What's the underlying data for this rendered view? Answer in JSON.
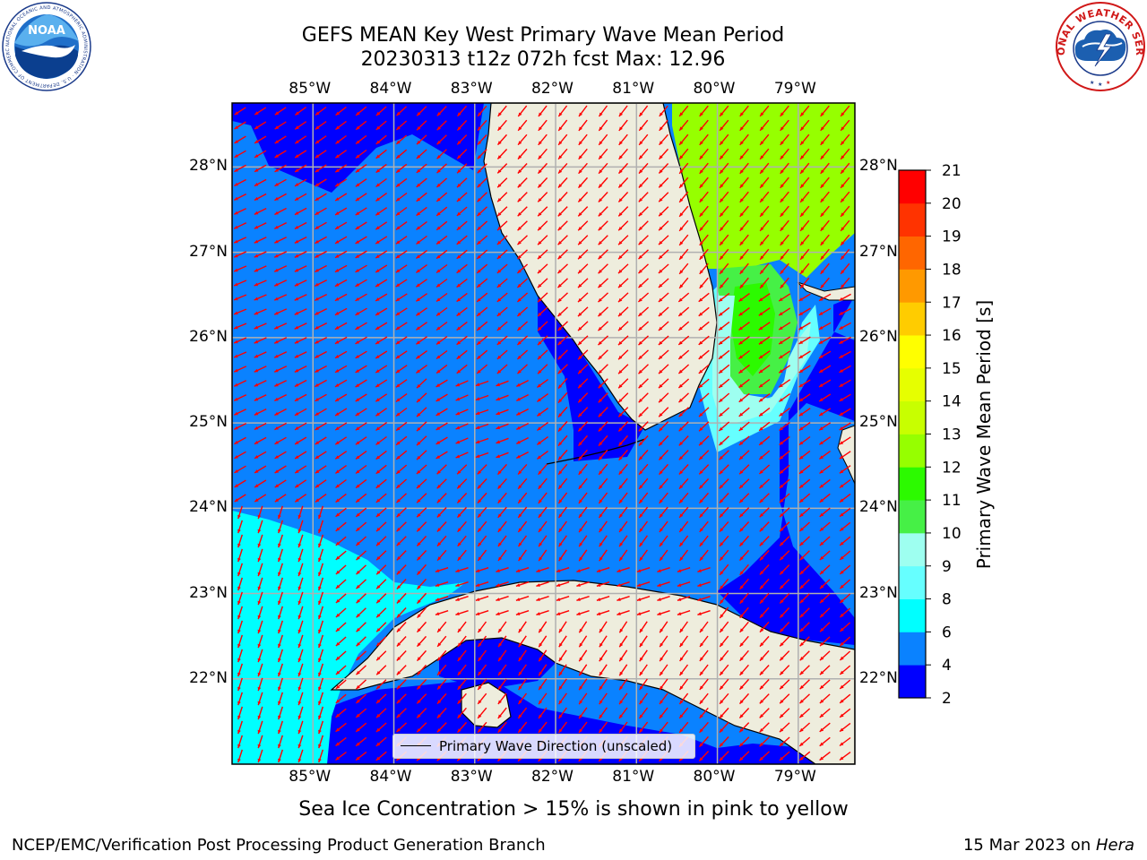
{
  "title": {
    "line1": "GEFS MEAN Key West Primary Wave Mean Period",
    "line2": "20230313 t12z 072h fcst   Max: 12.96"
  },
  "map": {
    "lon_labels": [
      "85°W",
      "84°W",
      "83°W",
      "82°W",
      "81°W",
      "80°W",
      "79°W"
    ],
    "lat_labels": [
      "28°N",
      "27°N",
      "26°N",
      "25°N",
      "24°N",
      "23°N",
      "22°N"
    ],
    "lon_range": [
      -86.0,
      -78.3
    ],
    "lat_range": [
      21.0,
      28.75
    ],
    "legend_label": "Primary Wave Direction (unscaled)",
    "arrow_color": "#ff0000",
    "land_color": "#eeeddd",
    "level_colors": {
      "2-4": "#0000ff",
      "4-6": "#0a82ff",
      "6-8": "#00ffff",
      "8-9": "#66ffff",
      "9-10": "#9efff0",
      "10-11": "#46f046",
      "11-12": "#2cfa00",
      "12-13": "#96ff00"
    }
  },
  "colorbar": {
    "label": "Primary Wave Mean Period [s]",
    "ticks": [
      "2",
      "4",
      "6",
      "8",
      "9",
      "10",
      "11",
      "12",
      "13",
      "14",
      "15",
      "16",
      "17",
      "18",
      "19",
      "20",
      "21"
    ],
    "colors": [
      "#0000ff",
      "#0a82ff",
      "#00ffff",
      "#66ffff",
      "#9efff0",
      "#46f046",
      "#2cfa00",
      "#96ff00",
      "#c8ff00",
      "#e6ff00",
      "#ffff00",
      "#ffcc00",
      "#ff9900",
      "#ff6600",
      "#ff3300",
      "#ff0000"
    ]
  },
  "footer": {
    "note": "Sea Ice Concentration > 15% is shown in pink to yellow",
    "left": "NCEP/EMC/Verification Post Processing Product Generation Branch",
    "right_date": "15 Mar 2023 on ",
    "right_machine": "Hera"
  },
  "logos": {
    "noaa_text": "NOAA",
    "noaa_ring": "NATIONAL OCEANIC AND ATMOSPHERIC ADMINISTRATION · U.S. DEPARTMENT OF COMMERCE",
    "nws_ring": "NATIONAL WEATHER SERVICE"
  }
}
